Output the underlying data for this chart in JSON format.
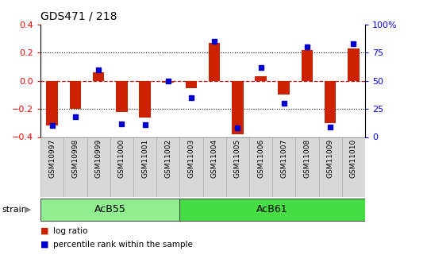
{
  "title": "GDS471 / 218",
  "samples": [
    "GSM10997",
    "GSM10998",
    "GSM10999",
    "GSM11000",
    "GSM11001",
    "GSM11002",
    "GSM11003",
    "GSM11004",
    "GSM11005",
    "GSM11006",
    "GSM11007",
    "GSM11008",
    "GSM11009",
    "GSM11010"
  ],
  "log_ratio": [
    -0.32,
    -0.2,
    0.06,
    -0.22,
    -0.26,
    -0.01,
    -0.05,
    0.27,
    -0.38,
    0.03,
    -0.1,
    0.22,
    -0.3,
    0.23
  ],
  "percentile_rank": [
    10,
    18,
    60,
    12,
    11,
    50,
    35,
    85,
    8,
    62,
    30,
    80,
    9,
    83
  ],
  "groups": [
    {
      "label": "AcB55",
      "start": 0,
      "end": 6,
      "color": "#90ee90"
    },
    {
      "label": "AcB61",
      "start": 6,
      "end": 14,
      "color": "#44dd44"
    }
  ],
  "strain_label": "strain",
  "ylim": [
    -0.4,
    0.4
  ],
  "yticks": [
    -0.4,
    -0.2,
    0.0,
    0.2,
    0.4
  ],
  "y2ticks": [
    0,
    25,
    50,
    75,
    100
  ],
  "y2ticklabels": [
    "0",
    "25",
    "50",
    "75",
    "100%"
  ],
  "hlines": [
    0.2,
    -0.2
  ],
  "bar_color": "#cc2200",
  "dot_color": "#0000cc",
  "zero_line_color": "#cc0000",
  "background_color": "#ffffff",
  "legend_items": [
    {
      "label": "log ratio",
      "color": "#cc2200"
    },
    {
      "label": "percentile rank within the sample",
      "color": "#0000cc"
    }
  ]
}
